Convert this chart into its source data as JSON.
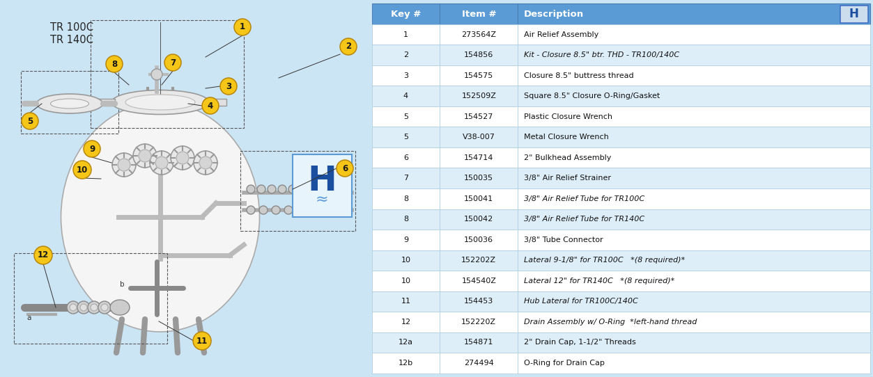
{
  "bg_color": "#cce5f5",
  "table_header": [
    "Key #",
    "Item #",
    "Description"
  ],
  "header_bg": "#5b9bd5",
  "header_fg": "#ffffff",
  "row_bg_even": "#ffffff",
  "row_bg_odd": "#ddeef8",
  "table_border": "#7fb3d3",
  "table_data": [
    [
      "1",
      "273564Z",
      "Air Relief Assembly",
      false
    ],
    [
      "2",
      "154856",
      "Kit - Closure 8.5\" btr. THD - TR100/140C",
      true
    ],
    [
      "3",
      "154575",
      "Closure 8.5\" buttress thread",
      false
    ],
    [
      "4",
      "152509Z",
      "Square 8.5\" Closure O-Ring/Gasket",
      false
    ],
    [
      "5",
      "154527",
      "Plastic Closure Wrench",
      false
    ],
    [
      "5",
      "V38-007",
      "Metal Closure Wrench",
      false
    ],
    [
      "6",
      "154714",
      "2\" Bulkhead Assembly",
      false
    ],
    [
      "7",
      "150035",
      "3/8\" Air Relief Strainer",
      false
    ],
    [
      "8",
      "150041",
      "3/8\" Air Relief Tube for TR100C",
      true
    ],
    [
      "8",
      "150042",
      "3/8\" Air Relief Tube for TR140C",
      true
    ],
    [
      "9",
      "150036",
      "3/8\" Tube Connector",
      false
    ],
    [
      "10",
      "152202Z",
      "Lateral 9-1/8\" for TR100C   *(8 required)*",
      true
    ],
    [
      "10",
      "154540Z",
      "Lateral 12\" for TR140C   *(8 required)*",
      true
    ],
    [
      "11",
      "154453",
      "Hub Lateral for TR100C/140C",
      true
    ],
    [
      "12",
      "152220Z",
      "Drain Assembly w/ O-Ring  *left-hand thread",
      true
    ],
    [
      "12a",
      "154871",
      "2\" Drain Cap, 1-1/2\" Threads",
      false
    ],
    [
      "12b",
      "274494",
      "O-Ring for Drain Cap",
      false
    ]
  ],
  "callout_color": "#f5c518",
  "callout_border": "#b8860b",
  "callout_text": "#1a1a1a",
  "fig_width": 12.53,
  "fig_height": 5.42,
  "diagram_split": 0.423
}
